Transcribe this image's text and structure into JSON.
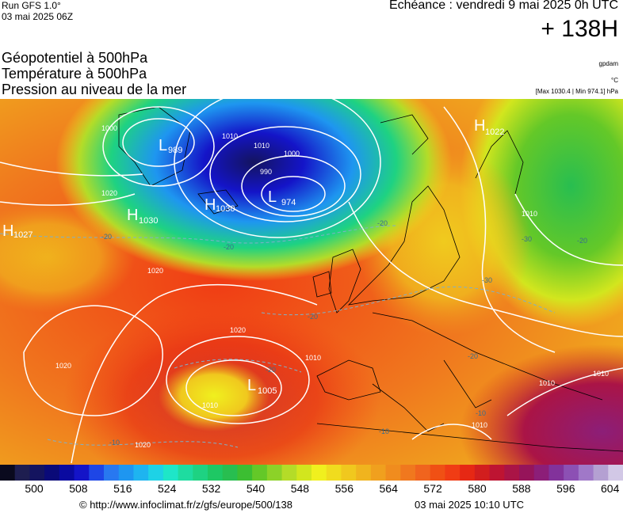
{
  "header": {
    "run_label": "Run GFS 1.0°",
    "run_date": "03 mai 2025 06Z",
    "valid_time": "Echéance : vendredi 9 mai 2025 0h UTC",
    "lead_hour": "+ 138H"
  },
  "titles": {
    "line1": "Géopotentiel à 500hPa",
    "line2": "Température à 500hPa",
    "line3": "Pression au niveau de la mer"
  },
  "units": {
    "geopotential": "gpdam",
    "temperature": "°C",
    "pressure_minmax": "[Max 1030.4 | Min 974.1] hPa"
  },
  "map": {
    "pressure_centers": [
      {
        "type": "L",
        "value": "989"
      },
      {
        "type": "L",
        "value": "974"
      },
      {
        "type": "H",
        "value": "1030"
      },
      {
        "type": "H",
        "value": "1030"
      },
      {
        "type": "H",
        "value": "1027"
      },
      {
        "type": "H",
        "value": "1022"
      },
      {
        "type": "L",
        "value": "1005"
      }
    ],
    "isobar_labels": [
      "1000",
      "1010",
      "1010",
      "1000",
      "990",
      "1020",
      "1020",
      "1020",
      "1020",
      "1010",
      "1010",
      "1010",
      "1010",
      "1010",
      "1020",
      "1010"
    ],
    "temperature_labels": [
      "-20",
      "-20",
      "-20",
      "-20",
      "-30",
      "-30",
      "-20",
      "-20",
      "-20",
      "-10",
      "-10",
      "-10"
    ]
  },
  "colorbar": {
    "tick_labels": [
      "500",
      "508",
      "516",
      "524",
      "532",
      "540",
      "548",
      "556",
      "564",
      "572",
      "580",
      "588",
      "596",
      "604"
    ],
    "colors": [
      "#0a0a1e",
      "#1e1e50",
      "#14145f",
      "#0a0a78",
      "#0a0aa0",
      "#1414c8",
      "#1e46e6",
      "#2878f0",
      "#1e96f0",
      "#1eb4f0",
      "#1ed2e6",
      "#1ee6c8",
      "#1edca0",
      "#1ed282",
      "#1ec864",
      "#28be50",
      "#3cbe32",
      "#64c828",
      "#8cd228",
      "#b4dc28",
      "#d2e61e",
      "#f0f01e",
      "#f0dc1e",
      "#f0c81e",
      "#f0b41e",
      "#f0a01e",
      "#f08c1e",
      "#f0781e",
      "#f0641e",
      "#f05014",
      "#f03c14",
      "#e62814",
      "#d21e1e",
      "#be1432",
      "#aa1446",
      "#96145a",
      "#8c1e78",
      "#82329b",
      "#8c50b4",
      "#a078c8",
      "#b4a0d2",
      "#d2c8e6"
    ]
  },
  "footer": {
    "url": "© http://www.infoclimat.fr/z/gfs/europe/500/138",
    "stamp": "03 mai 2025 10:10 UTC"
  }
}
